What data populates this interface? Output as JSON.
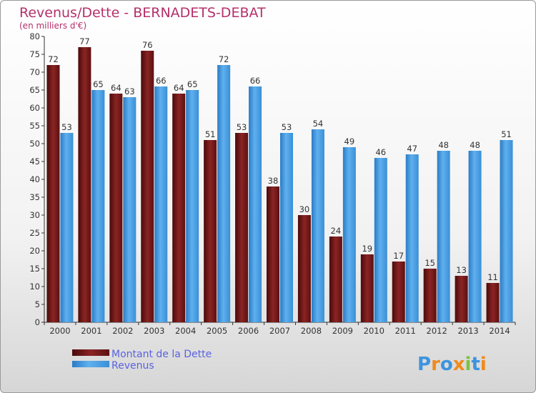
{
  "chart_data": {
    "type": "bar",
    "title": "Revenus/Dette - BERNADETS-DEBAT",
    "subtitle": "(en milliers d'€)",
    "categories": [
      "2000",
      "2001",
      "2002",
      "2003",
      "2004",
      "2005",
      "2006",
      "2007",
      "2008",
      "2009",
      "2010",
      "2011",
      "2012",
      "2013",
      "2014"
    ],
    "series": [
      {
        "name": "Montant de la Dette",
        "color": "#7a1a1a",
        "values": [
          72,
          77,
          64,
          76,
          64,
          51,
          53,
          38,
          30,
          24,
          19,
          17,
          15,
          13,
          11
        ]
      },
      {
        "name": "Revenus",
        "color": "#3d94dd",
        "values": [
          53,
          65,
          63,
          66,
          65,
          72,
          66,
          53,
          54,
          49,
          46,
          47,
          48,
          48,
          51
        ]
      }
    ],
    "ylim": [
      0,
      80
    ],
    "yticks": [
      0,
      5,
      10,
      15,
      20,
      25,
      30,
      35,
      40,
      45,
      50,
      55,
      60,
      65,
      70,
      75,
      80
    ],
    "grid": false,
    "legend_position": "bottom-left"
  },
  "logo": {
    "text": "Proxiti"
  }
}
